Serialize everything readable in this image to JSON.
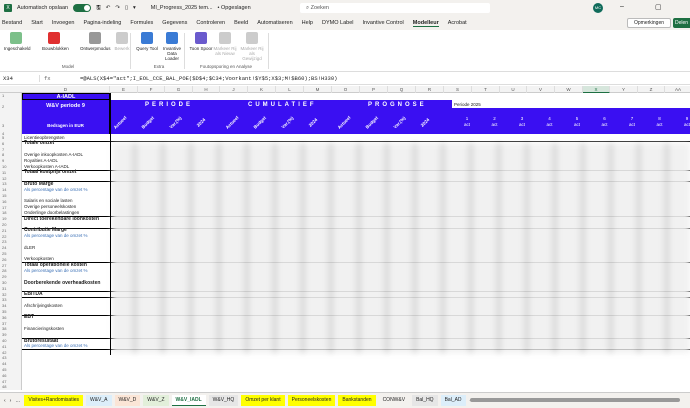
{
  "titlebar": {
    "autosave": "Automatisch opslaan",
    "filename": "MI_Progress_2025 tem...",
    "saved": "• Opgeslagen",
    "search_placeholder": "Zoeken",
    "avatar": "MC"
  },
  "menu": [
    "Bestand",
    "Start",
    "Invoegen",
    "Pagina-indeling",
    "Formules",
    "Gegevens",
    "Controleren",
    "Beeld",
    "Automatiseren",
    "Help",
    "DYMO Label",
    "Invantive Control",
    "Modelleur",
    "Acrobat"
  ],
  "menu_active": 12,
  "comments_button": "Opmerkingen",
  "share_button": "Delen",
  "ribbon": {
    "buttons": [
      {
        "label": "Ingeschakeld",
        "color": "#7cc08a"
      },
      {
        "label": "Bouwblokken",
        "color": "#e03030"
      },
      {
        "label": "Ontwerpmodus",
        "color": "#999999"
      },
      {
        "label": "Bewerk",
        "color": "#cccccc",
        "disabled": true
      },
      {
        "label": "Query Tool",
        "color": "#3a7bd5"
      },
      {
        "label": "Invantive Data Loader",
        "color": "#3a7bd5"
      },
      {
        "label": "Toon Spoor",
        "color": "#6a5acd"
      },
      {
        "label": "Markeer Rij als Nieuw",
        "color": "#cccccc",
        "disabled": true
      },
      {
        "label": "Markeer Rij als Gewijzigd",
        "color": "#cccccc",
        "disabled": true
      }
    ],
    "groups": [
      "Model",
      "Extra",
      "Foutopsporing en Analyse"
    ]
  },
  "formula": {
    "cell": "X34",
    "fx": "fx",
    "content": "=@ALS(X$4=\"act\";I_EOL_CCE_BAL_POE($D$4;$C34;Voorkant!$Y$5;X$3;M!$B60);BS!H330)"
  },
  "columns": [
    "D",
    "E",
    "F",
    "G",
    "H",
    "J",
    "K",
    "L",
    "M",
    "O",
    "P",
    "Q",
    "R",
    "S",
    "T",
    "U",
    "V",
    "W",
    "X",
    "Y",
    "Z",
    "AA",
    "AB"
  ],
  "selected_column": "X",
  "header": {
    "entity": "A-IADL",
    "report": "W&V periode 9",
    "amounts": "Bedragen in EUR",
    "sections": [
      "PERIODE",
      "CUMULATIEF",
      "PROGNOSE"
    ],
    "subcols": [
      "Actueel",
      "Budget",
      "Var.(%)",
      "2024"
    ],
    "period_label": "Periode 2025",
    "months": [
      "1",
      "2",
      "3",
      "4",
      "5",
      "6",
      "7",
      "8",
      "9"
    ],
    "month_sub": "act"
  },
  "rows": [
    {
      "n": 5,
      "label": "Licentieopbrengsten"
    },
    {
      "n": 6,
      "label": "Totale omzet",
      "bold": true
    },
    {
      "n": 7,
      "label": ""
    },
    {
      "n": 8,
      "label": "Overige inkoopkosten A-IADL"
    },
    {
      "n": 9,
      "label": "Royalties A-IADL"
    },
    {
      "n": 10,
      "label": "Verkoopkosten A-IADL"
    },
    {
      "n": 11,
      "label": "Totaal kostprijs omzet",
      "bold": true
    },
    {
      "n": 12,
      "label": ""
    },
    {
      "n": 13,
      "label": "Bruto Marge",
      "bold": true
    },
    {
      "n": 14,
      "label": "Als percentage van de omzet %",
      "pct": true
    },
    {
      "n": 15,
      "label": ""
    },
    {
      "n": 16,
      "label": "Salaris en sociale lasten"
    },
    {
      "n": 17,
      "label": "Overige personeelskosten"
    },
    {
      "n": 18,
      "label": "Onderlinge doorbelastingen"
    },
    {
      "n": 19,
      "label": "Direct toerekenbare loonkosten",
      "bold": true
    },
    {
      "n": 20,
      "label": ""
    },
    {
      "n": 21,
      "label": "Contributie Marge",
      "bold": true
    },
    {
      "n": 22,
      "label": "Als percentage van de omzet %",
      "pct": true
    },
    {
      "n": 23,
      "label": ""
    },
    {
      "n": 24,
      "label": "dLER"
    },
    {
      "n": 25,
      "label": ""
    },
    {
      "n": 26,
      "label": "Verkoopkosten"
    },
    {
      "n": 27,
      "label": "Totaal operationele kosten",
      "bold": true
    },
    {
      "n": 28,
      "label": "Als percentage van de omzet %",
      "pct": true
    },
    {
      "n": 29,
      "label": ""
    },
    {
      "n": 30,
      "label": "Doorberekende overheadkosten",
      "bold": true
    },
    {
      "n": 31,
      "label": ""
    },
    {
      "n": 32,
      "label": "EBITDA",
      "bold": true
    },
    {
      "n": 33,
      "label": ""
    },
    {
      "n": 34,
      "label": "Afschrijvingskosten"
    },
    {
      "n": 35,
      "label": ""
    },
    {
      "n": 36,
      "label": "EBT",
      "bold": true
    },
    {
      "n": 37,
      "label": ""
    },
    {
      "n": 38,
      "label": "Financieringskosten"
    },
    {
      "n": 39,
      "label": ""
    },
    {
      "n": 40,
      "label": "Brutoresultaat",
      "bold": true
    },
    {
      "n": 41,
      "label": "Als percentage van de omzet %",
      "pct": true
    },
    {
      "n": 42,
      "label": ""
    },
    {
      "n": 43,
      "label": ""
    },
    {
      "n": 44,
      "label": ""
    },
    {
      "n": 45,
      "label": ""
    },
    {
      "n": 46,
      "label": ""
    },
    {
      "n": 47,
      "label": ""
    },
    {
      "n": 48,
      "label": ""
    }
  ],
  "sheet_tabs": [
    {
      "label": "Visites+Randomisaties",
      "color": "#ffff00"
    },
    {
      "label": "W&V_A",
      "color": "#dceefa"
    },
    {
      "label": "W&V_D",
      "color": "#fbe5d6"
    },
    {
      "label": "W&V_Z",
      "color": "#e2efda"
    },
    {
      "label": "W&V_IADL",
      "color": "#ffffff"
    },
    {
      "label": "W&V_HQ",
      "color": "#e6e6e6"
    },
    {
      "label": "Omzet per klant",
      "color": "#ffff00"
    },
    {
      "label": "Personeelskosten",
      "color": "#ffff00"
    },
    {
      "label": "Bankstanden",
      "color": "#ffff00"
    },
    {
      "label": "CONW&V",
      "color": "#f3f1ee"
    },
    {
      "label": "Bal_HQ",
      "color": "#e6e6e6"
    },
    {
      "label": "Bal_AD",
      "color": "#dceefa"
    }
  ],
  "active_tab": 4
}
